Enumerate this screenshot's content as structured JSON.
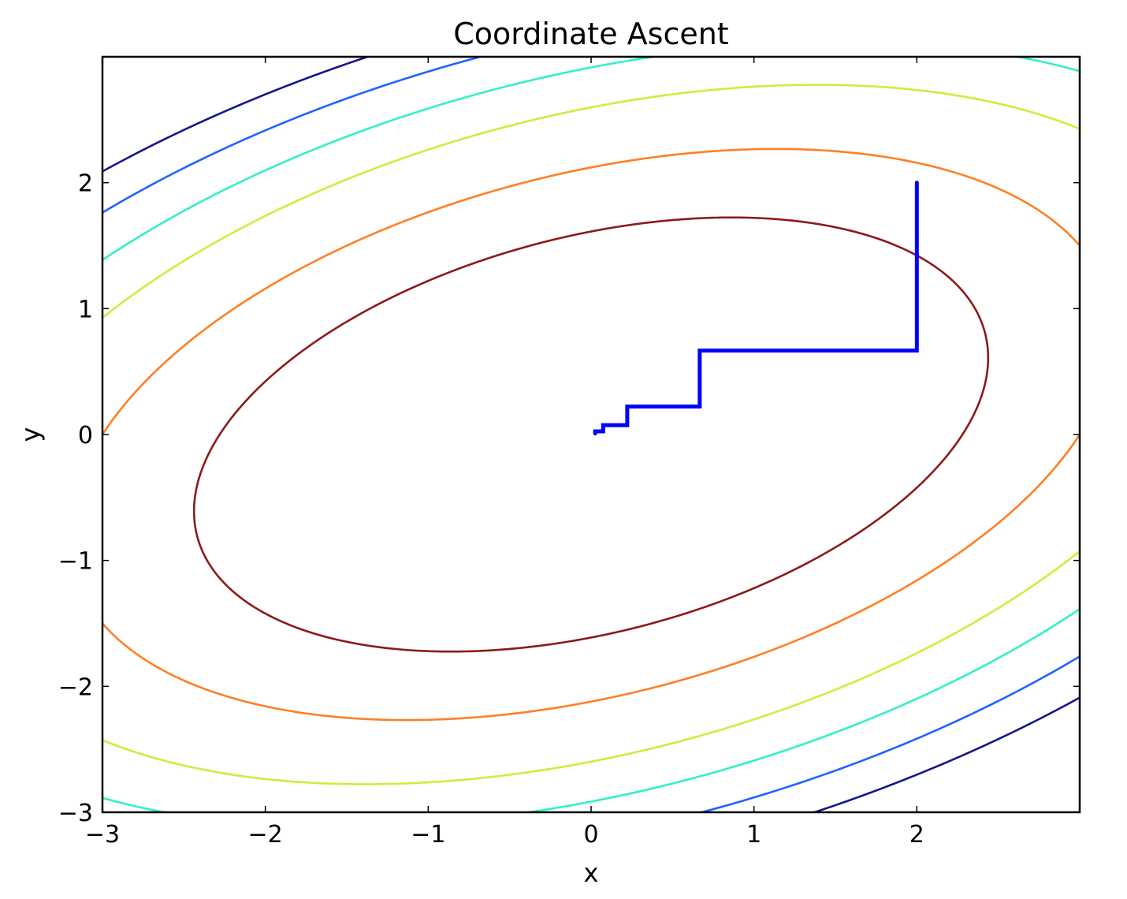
{
  "chart_data": {
    "type": "line",
    "title": "Coordinate Ascent",
    "xlabel": "x",
    "ylabel": "y",
    "xlim": [
      -3,
      3
    ],
    "ylim": [
      -3,
      3
    ],
    "xticks": [
      -3,
      -2,
      -1,
      0,
      1,
      2
    ],
    "xtick_labels": [
      "−3",
      "−2",
      "−1",
      "0",
      "1",
      "2"
    ],
    "yticks": [
      -3,
      -2,
      -1,
      0,
      1,
      2
    ],
    "ytick_labels": [
      "−3",
      "−2",
      "−1",
      "0",
      "1",
      "2"
    ],
    "grid": false,
    "contours": {
      "function": "quadratic form x² − x·y + 2y²",
      "quad": [
        1,
        -1,
        2
      ],
      "levels": [
        {
          "value": 5.2,
          "color": "#8b1a1a"
        },
        {
          "value": 9.0,
          "color": "#ff7f24"
        },
        {
          "value": 13.5,
          "color": "#c9f03c"
        },
        {
          "value": 17.0,
          "color": "#33f0c8"
        },
        {
          "value": 20.5,
          "color": "#1e64ff"
        },
        {
          "value": 24.0,
          "color": "#16168a"
        }
      ]
    },
    "series": [
      {
        "color": "#0000ff",
        "x": [
          2,
          2,
          0.667,
          0.667,
          0.222,
          0.222,
          0.074,
          0.074,
          0.025,
          0.025
        ],
        "y": [
          2,
          0.667,
          0.667,
          0.222,
          0.222,
          0.074,
          0.074,
          0.025,
          0.025,
          0.008
        ]
      }
    ]
  }
}
